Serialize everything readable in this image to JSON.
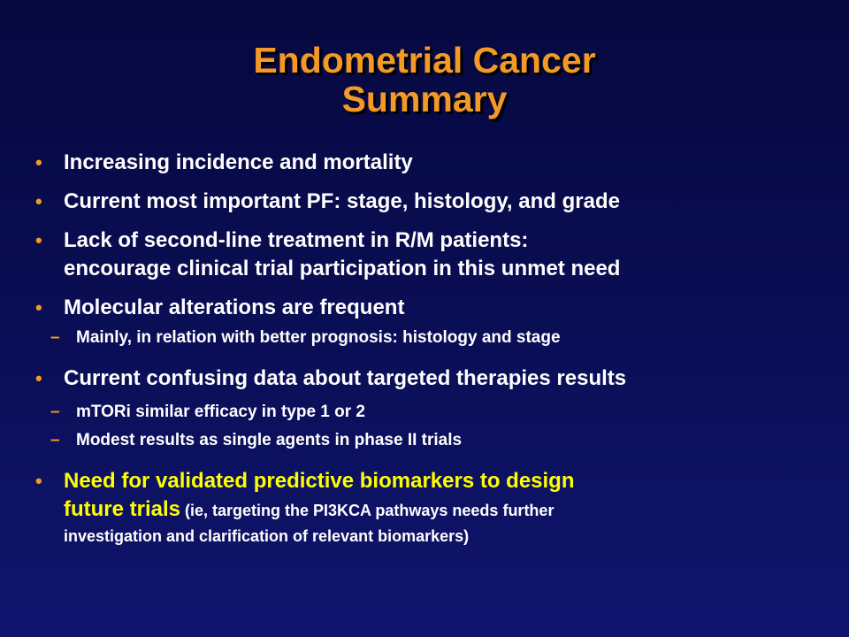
{
  "title": {
    "line1": "Endometrial Cancer",
    "line2": "Summary"
  },
  "colors": {
    "title": "#f39a26",
    "bullet_marker": "#f39a26",
    "highlight": "#ffff00",
    "text": "#ffffff",
    "background": "#0a0d52"
  },
  "bullets": [
    {
      "text": "Increasing incidence and mortality"
    },
    {
      "text": "Current most important PF: stage, histology, and grade"
    },
    {
      "line1": "Lack of second-line treatment in R/M patients:",
      "line2": "encourage clinical trial participation in this unmet need"
    },
    {
      "text": "Molecular alterations are frequent",
      "subs": [
        "Mainly, in relation with better prognosis: histology and stage"
      ]
    },
    {
      "text": "Current confusing data about targeted therapies results",
      "subs": [
        "mTORi similar efficacy in type 1 or 2",
        "Modest results as single agents in phase II trials"
      ]
    },
    {
      "line1": "Need for  validated predictive biomarkers to design",
      "line2": "future trials",
      "note_part1": " (ie, targeting the PI3KCA pathways needs further",
      "note_part2": "investigation and clarification of relevant biomarkers)"
    }
  ],
  "markers": {
    "bullet": "•",
    "dash": "–"
  }
}
